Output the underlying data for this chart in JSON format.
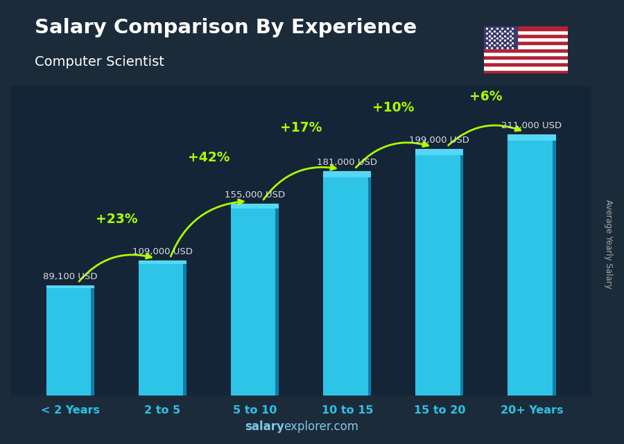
{
  "title": "Salary Comparison By Experience",
  "subtitle": "Computer Scientist",
  "categories": [
    "< 2 Years",
    "2 to 5",
    "5 to 10",
    "10 to 15",
    "15 to 20",
    "20+ Years"
  ],
  "values": [
    89100,
    109000,
    155000,
    181000,
    199000,
    211000
  ],
  "value_labels": [
    "89,100 USD",
    "109,000 USD",
    "155,000 USD",
    "181,000 USD",
    "199,000 USD",
    "211,000 USD"
  ],
  "pct_changes": [
    "+23%",
    "+42%",
    "+17%",
    "+10%",
    "+6%"
  ],
  "bar_color_main": "#2ec4e8",
  "bar_color_dark": "#0d7fa8",
  "bar_color_highlight": "#55d8f5",
  "bg_color": "#1c2b3a",
  "title_color": "#ffffff",
  "subtitle_color": "#ffffff",
  "label_color": "#dddddd",
  "pct_color": "#aaff00",
  "xlabel_color": "#29c4e8",
  "watermark_salary": "salary",
  "watermark_explorer": "explorer",
  "watermark_dot_com": ".com",
  "ylabel_text": "Average Yearly Salary",
  "ylim_max": 250000
}
